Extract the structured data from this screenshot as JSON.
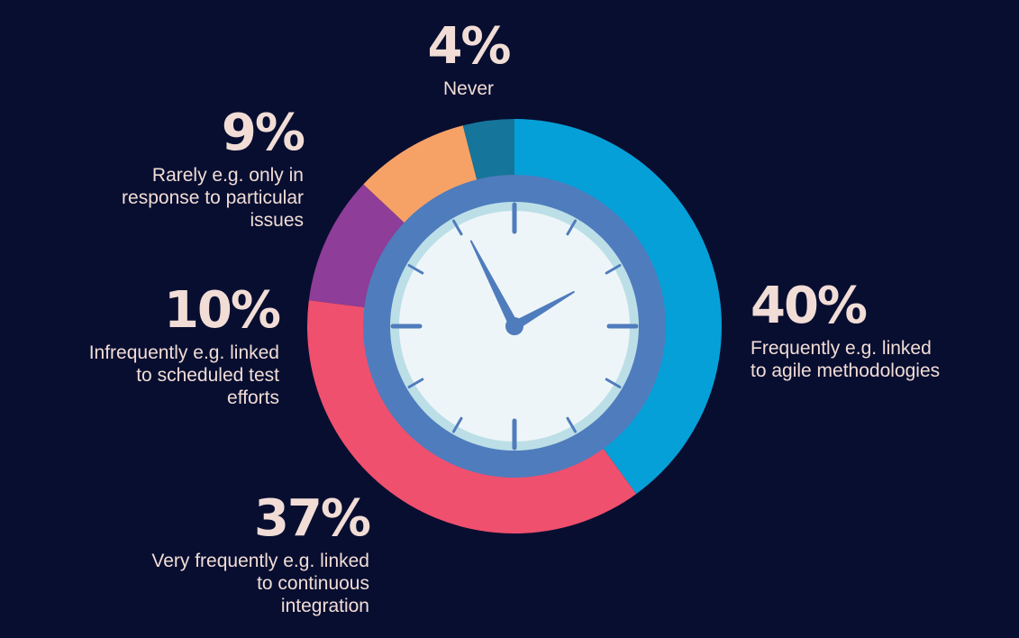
{
  "chart_data": {
    "type": "pie",
    "categories": [
      "Frequently e.g. linked\nto agile methodologies",
      "Very frequently e.g. linked\nto continuous\nintegration",
      "Infrequently e.g. linked\nto scheduled test\nefforts",
      "Rarely e.g. only in\nresponse to particular\nissues",
      "Never"
    ],
    "values": [
      40,
      37,
      10,
      9,
      4
    ],
    "value_labels": [
      "40%",
      "37%",
      "10%",
      "9%",
      "4%"
    ],
    "colors": [
      "#06a0d8",
      "#ef506e",
      "#8e3d98",
      "#f6a266",
      "#16759a"
    ],
    "title": "",
    "legend": "none"
  },
  "style": {
    "background": "#080e30",
    "text_color": "#f1ddd6",
    "clock_ring": "#4f7cbd",
    "clock_face": "#eef5f8",
    "clock_inner_ring": "#bcdfe7",
    "clock_marks": "#4f7cbd"
  },
  "icons": [
    "clock-icon"
  ]
}
